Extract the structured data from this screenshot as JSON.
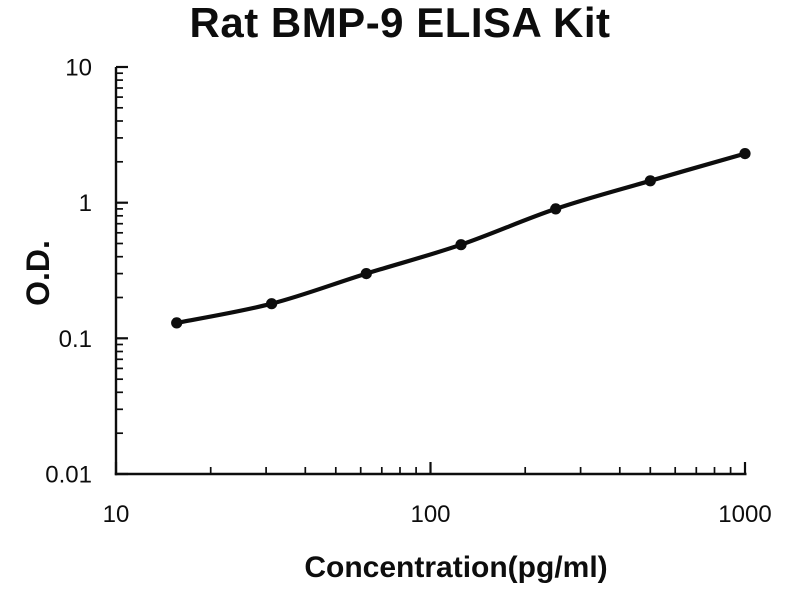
{
  "chart_data": {
    "type": "line",
    "title": "Rat BMP-9 ELISA Kit",
    "xlabel": "Concentration(pg/ml)",
    "ylabel": "O.D.",
    "xscale": "log",
    "yscale": "log",
    "xlim": [
      10,
      1000
    ],
    "ylim": [
      0.01,
      10
    ],
    "x_tick_labels": [
      "10",
      "100",
      "1000"
    ],
    "y_tick_labels": [
      "0.01",
      "0.1",
      "1",
      "10"
    ],
    "grid": false,
    "legend": false,
    "marker": "filled-circle",
    "ink_color": "#0d0d0d",
    "x": [
      15.6,
      31.25,
      62.5,
      125,
      250,
      500,
      1000
    ],
    "values": [
      0.13,
      0.18,
      0.3,
      0.49,
      0.9,
      1.45,
      2.3
    ]
  }
}
